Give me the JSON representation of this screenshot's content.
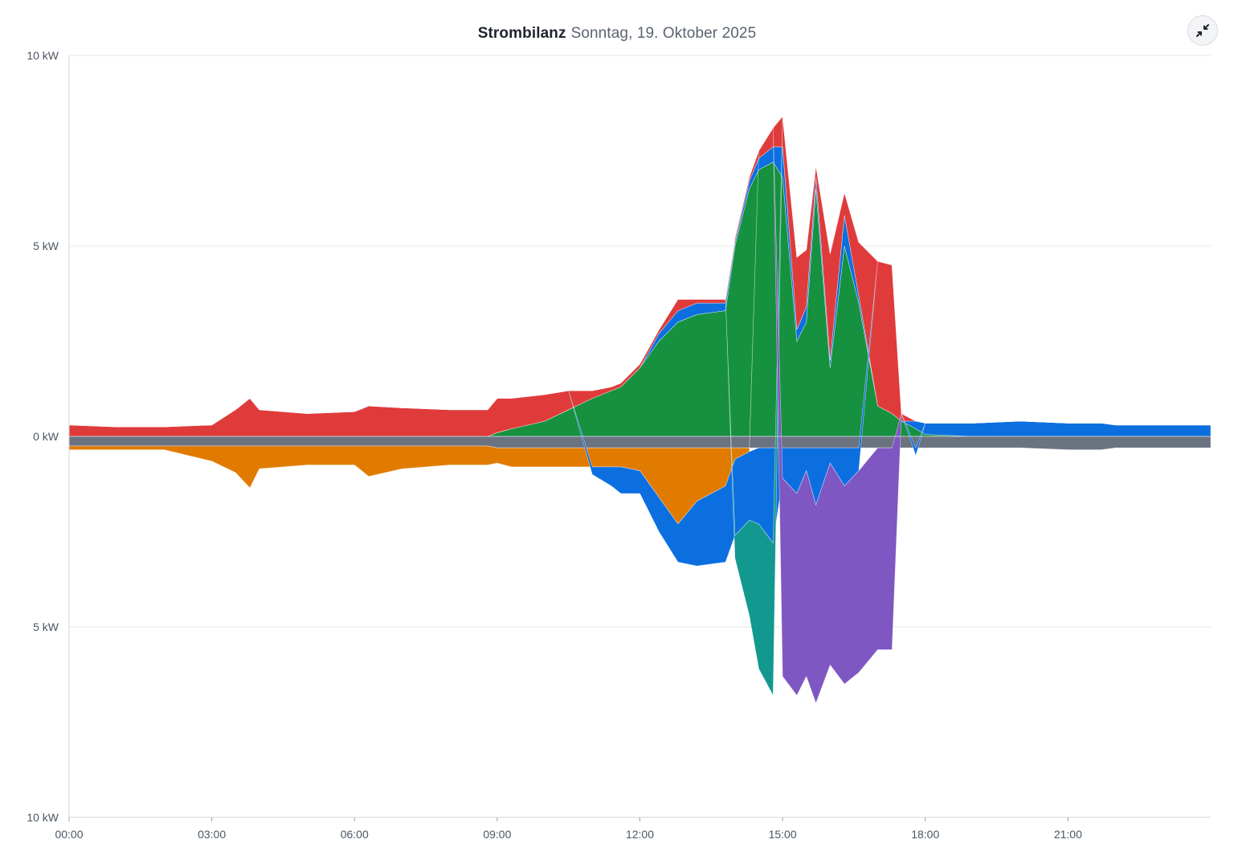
{
  "header": {
    "title": "Strombilanz",
    "subtitle": "Sonntag, 19. Oktober 2025",
    "collapse_icon": "collapse-arrows-icon"
  },
  "chart_data": {
    "type": "area",
    "title": "Strombilanz",
    "subtitle": "Sonntag, 19. Oktober 2025",
    "xlabel": "",
    "ylabel": "",
    "x_unit": "hours",
    "xlim": [
      0,
      24
    ],
    "ylim": [
      -10,
      10
    ],
    "grid": true,
    "legend": "none",
    "y_ticks": [
      {
        "value": 10,
        "label": "10 kW"
      },
      {
        "value": 5,
        "label": "5 kW"
      },
      {
        "value": 0,
        "label": "0 kW"
      },
      {
        "value": -5,
        "label": "5 kW"
      },
      {
        "value": -10,
        "label": "10 kW"
      }
    ],
    "x_ticks": [
      {
        "value": 0,
        "label": "00:00"
      },
      {
        "value": 3,
        "label": "03:00"
      },
      {
        "value": 6,
        "label": "06:00"
      },
      {
        "value": 9,
        "label": "09:00"
      },
      {
        "value": 12,
        "label": "12:00"
      },
      {
        "value": 15,
        "label": "15:00"
      },
      {
        "value": 18,
        "label": "18:00"
      },
      {
        "value": 21,
        "label": "21:00"
      }
    ],
    "x": [
      0,
      1,
      2,
      3,
      3.5,
      3.8,
      4,
      5,
      6,
      6.3,
      7,
      8,
      8.8,
      9,
      9.3,
      10,
      10.5,
      11,
      11.4,
      11.6,
      12,
      12.4,
      12.8,
      13.2,
      13.8,
      14,
      14.3,
      14.5,
      14.8,
      15,
      15.3,
      15.5,
      15.7,
      16,
      16.3,
      16.6,
      17,
      17.3,
      17.5,
      17.8,
      18,
      19,
      20,
      21,
      21.7,
      22,
      23,
      24
    ],
    "series": [
      {
        "id": "solar",
        "color": "#16913f",
        "values": [
          0,
          0,
          0,
          0,
          0,
          0,
          0,
          0,
          0,
          0,
          0,
          0,
          0,
          0.1,
          0.2,
          0.4,
          0.7,
          1.0,
          1.2,
          1.3,
          1.8,
          2.5,
          3.0,
          3.2,
          3.3,
          5.0,
          6.5,
          7.0,
          7.2,
          6.8,
          2.5,
          3.0,
          6.5,
          1.8,
          5.0,
          3.5,
          0.8,
          0.6,
          0.4,
          0.2,
          0.05,
          0,
          0,
          0,
          0,
          0,
          0,
          0
        ]
      },
      {
        "id": "battery-discharge",
        "color": "#0b6fe0",
        "values": [
          0,
          0,
          0,
          0,
          0,
          0,
          0,
          0,
          0,
          0,
          0,
          0,
          0,
          0,
          0,
          0,
          0,
          0,
          0,
          0,
          0,
          0.2,
          0.3,
          0.3,
          0.2,
          0.1,
          0.2,
          0.3,
          0.4,
          0.8,
          0.3,
          0.4,
          0.3,
          0.2,
          0.8,
          0.2,
          0,
          0,
          0,
          0.2,
          0.3,
          0.35,
          0.4,
          0.35,
          0.35,
          0.3,
          0.3,
          0.3
        ]
      },
      {
        "id": "grid-import",
        "color": "#e03b3b",
        "values": [
          0.3,
          0.25,
          0.25,
          0.3,
          0.7,
          1.0,
          0.7,
          0.6,
          0.65,
          0.8,
          0.75,
          0.7,
          0.7,
          0.9,
          0.8,
          0.7,
          0.5,
          0.2,
          0.1,
          0.1,
          0.1,
          0.1,
          0.3,
          0.1,
          0.1,
          0.1,
          0.1,
          0.2,
          0.5,
          0.8,
          1.9,
          1.5,
          0.3,
          2.8,
          0.6,
          1.4,
          3.8,
          3.9,
          0.2,
          0,
          0,
          0,
          0,
          0,
          0,
          0,
          0,
          0
        ]
      },
      {
        "id": "home",
        "color": "#6b7280",
        "values": [
          -0.25,
          -0.25,
          -0.25,
          -0.25,
          -0.25,
          -0.25,
          -0.25,
          -0.25,
          -0.25,
          -0.25,
          -0.25,
          -0.25,
          -0.25,
          -0.3,
          -0.3,
          -0.3,
          -0.3,
          -0.3,
          -0.3,
          -0.3,
          -0.3,
          -0.3,
          -0.3,
          -0.3,
          -0.3,
          -0.3,
          -0.3,
          -0.3,
          -0.3,
          -0.3,
          -0.3,
          -0.3,
          -0.3,
          -0.3,
          -0.3,
          -0.3,
          -0.3,
          -0.3,
          -0.3,
          -0.3,
          -0.3,
          -0.3,
          -0.3,
          -0.35,
          -0.35,
          -0.3,
          -0.3,
          -0.3
        ]
      },
      {
        "id": "heat-pump",
        "color": "#e07b00",
        "values": [
          -0.1,
          -0.1,
          -0.1,
          -0.4,
          -0.7,
          -1.1,
          -0.6,
          -0.5,
          -0.5,
          -0.8,
          -0.6,
          -0.5,
          -0.5,
          -0.4,
          -0.5,
          -0.5,
          -0.5,
          -0.5,
          -0.5,
          -0.5,
          -0.6,
          -1.3,
          -2.0,
          -1.4,
          -1.0,
          -0.3,
          -0.1,
          0,
          0,
          0,
          0,
          0,
          0,
          0,
          0,
          0,
          0,
          0,
          0,
          0,
          0,
          0,
          0,
          0,
          0,
          0,
          0,
          0
        ]
      },
      {
        "id": "battery-charge",
        "color": "#0b6fe0",
        "values": [
          0,
          0,
          0,
          0,
          0,
          0,
          0,
          0,
          0,
          0,
          0,
          0,
          0,
          0,
          0,
          0,
          0,
          -0.2,
          -0.5,
          -0.7,
          -0.6,
          -0.9,
          -1.0,
          -1.7,
          -2.0,
          -2.0,
          -1.8,
          -2.0,
          -2.5,
          -0.8,
          -1.2,
          -0.6,
          -1.5,
          -0.4,
          -1.0,
          -0.6,
          0,
          0,
          0,
          -0.2,
          0,
          0,
          0,
          0,
          0,
          0,
          0,
          0
        ]
      },
      {
        "id": "wallbox-2",
        "color": "#13988f",
        "values": [
          0,
          0,
          0,
          0,
          0,
          0,
          0,
          0,
          0,
          0,
          0,
          0,
          0,
          0,
          0,
          0,
          0,
          0,
          0,
          0,
          0,
          0,
          0,
          0,
          0,
          -0.6,
          -2.5,
          -3.8,
          -4.0,
          0,
          0,
          0,
          0,
          0,
          0,
          0,
          0,
          0,
          0,
          0,
          0,
          0,
          0,
          0,
          0,
          0,
          0,
          0
        ]
      },
      {
        "id": "wallbox-1",
        "color": "#7f57c2",
        "values": [
          0,
          0,
          0,
          0,
          0,
          0,
          0,
          0,
          0,
          0,
          0,
          0,
          0,
          0,
          0,
          0,
          0,
          0,
          0,
          0,
          0,
          0,
          0,
          0,
          0,
          0,
          0,
          0,
          0,
          -5.2,
          -5.3,
          -5.4,
          -5.2,
          -5.3,
          -5.2,
          -5.3,
          -5.3,
          -5.3,
          0,
          0,
          0,
          0,
          0,
          0,
          0,
          0,
          0,
          0
        ]
      }
    ]
  }
}
